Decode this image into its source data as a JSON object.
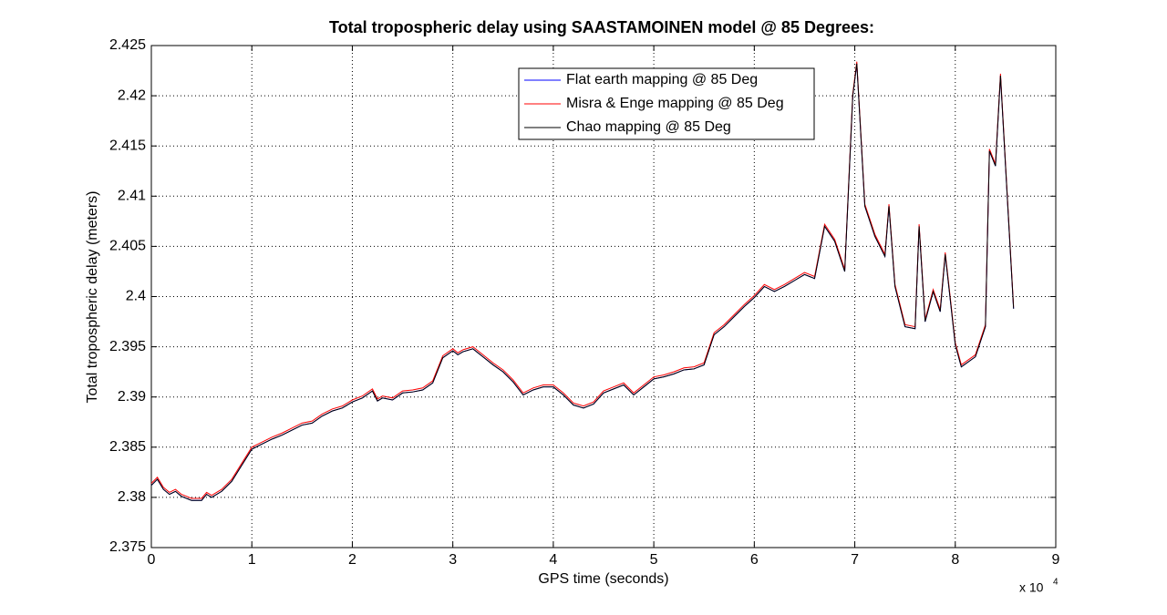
{
  "chart_data": {
    "type": "line",
    "title": "Total tropospheric delay using SAASTAMOINEN model @ 85 Degrees:",
    "x_label": "GPS time (seconds)",
    "y_label": "Total tropospheric delay (meters)",
    "x_multiplier": "x 10",
    "x_multiplier_exponent": "4",
    "xlim": [
      0,
      90000
    ],
    "xticks": [
      0,
      {
        "value": 10000,
        "label": "1"
      },
      {
        "value": 20000,
        "label": "2"
      },
      {
        "value": 30000,
        "label": "3"
      },
      {
        "value": 40000,
        "label": "4"
      },
      {
        "value": 50000,
        "label": "5"
      },
      {
        "value": 60000,
        "label": "6"
      },
      {
        "value": 70000,
        "label": "7"
      },
      {
        "value": 80000,
        "label": "8"
      },
      {
        "value": 90000,
        "label": "9"
      }
    ],
    "ylim": [
      2.375,
      2.425
    ],
    "yticks": [
      2.375,
      2.38,
      2.385,
      2.39,
      2.395,
      2.4,
      2.405,
      2.41,
      2.415,
      2.42,
      2.425
    ],
    "grid": true,
    "legend": "upper right",
    "x": [
      0,
      600,
      1200,
      1800,
      2400,
      3000,
      4000,
      5000,
      5500,
      6000,
      7000,
      8000,
      9000,
      10000,
      11000,
      12000,
      13000,
      14000,
      15000,
      16000,
      17000,
      18000,
      19000,
      20000,
      21000,
      22000,
      22500,
      23000,
      24000,
      25000,
      26000,
      27000,
      28000,
      29000,
      30000,
      30500,
      31000,
      32000,
      33000,
      34000,
      35000,
      36000,
      37000,
      38000,
      39000,
      40000,
      41000,
      42000,
      43000,
      44000,
      45000,
      46000,
      47000,
      48000,
      49000,
      50000,
      51000,
      52000,
      53000,
      54000,
      55000,
      56000,
      57000,
      58000,
      59000,
      60000,
      61000,
      62000,
      63000,
      64000,
      65000,
      66000,
      67000,
      68000,
      69000,
      69800,
      70200,
      71000,
      72000,
      73000,
      73400,
      74000,
      75000,
      76000,
      76400,
      77000,
      77800,
      78500,
      79000,
      80000,
      80600,
      82000,
      83000,
      83400,
      84000,
      84500,
      85000,
      85800
    ],
    "series": [
      {
        "name": "Flat earth mapping @ 85 Deg",
        "color": "#0000ff",
        "values": [
          2.3812,
          2.3818,
          2.3808,
          2.3803,
          2.3806,
          2.3801,
          2.3797,
          2.3797,
          2.3803,
          2.38,
          2.3806,
          2.3816,
          2.3832,
          2.3848,
          2.3853,
          2.3858,
          2.3862,
          2.3867,
          2.3872,
          2.3874,
          2.3881,
          2.3886,
          2.3889,
          2.3895,
          2.3899,
          2.3906,
          2.3896,
          2.3899,
          2.3897,
          2.3904,
          2.3905,
          2.3907,
          2.3914,
          2.3939,
          2.3946,
          2.3942,
          2.3945,
          2.3948,
          2.394,
          2.3932,
          2.3925,
          2.3915,
          2.3902,
          2.3907,
          2.391,
          2.391,
          2.3902,
          2.3892,
          2.3889,
          2.3893,
          2.3904,
          2.3908,
          2.3912,
          2.3902,
          2.391,
          2.3918,
          2.392,
          2.3923,
          2.3927,
          2.3928,
          2.3932,
          2.3962,
          2.397,
          2.398,
          2.399,
          2.3999,
          2.401,
          2.4005,
          2.401,
          2.4016,
          2.4022,
          2.4018,
          2.407,
          2.4055,
          2.4025,
          2.42,
          2.4232,
          2.409,
          2.406,
          2.404,
          2.409,
          2.401,
          2.397,
          2.3968,
          2.407,
          2.3975,
          2.4005,
          2.3985,
          2.4042,
          2.3952,
          2.393,
          2.394,
          2.397,
          2.4145,
          2.413,
          2.422,
          2.413,
          2.3988
        ]
      },
      {
        "name": "Misra & Enge mapping @ 85 Deg",
        "color": "#ff0000",
        "values": [
          2.3814,
          2.382,
          2.381,
          2.3805,
          2.3808,
          2.3803,
          2.3799,
          2.3799,
          2.3805,
          2.3802,
          2.3808,
          2.3818,
          2.3834,
          2.385,
          2.3855,
          2.386,
          2.3864,
          2.3869,
          2.3874,
          2.3876,
          2.3883,
          2.3888,
          2.3891,
          2.3897,
          2.3901,
          2.3908,
          2.3898,
          2.3901,
          2.3899,
          2.3906,
          2.3907,
          2.3909,
          2.3916,
          2.3941,
          2.3948,
          2.3944,
          2.3947,
          2.395,
          2.3942,
          2.3934,
          2.3927,
          2.3917,
          2.3904,
          2.3909,
          2.3912,
          2.3912,
          2.3904,
          2.3894,
          2.3891,
          2.3895,
          2.3906,
          2.391,
          2.3914,
          2.3904,
          2.3912,
          2.392,
          2.3922,
          2.3925,
          2.3929,
          2.393,
          2.3934,
          2.3964,
          2.3972,
          2.3982,
          2.3992,
          2.4001,
          2.4012,
          2.4007,
          2.4012,
          2.4018,
          2.4024,
          2.402,
          2.4072,
          2.4057,
          2.4027,
          2.4202,
          2.4234,
          2.4092,
          2.4062,
          2.4042,
          2.4092,
          2.4012,
          2.3972,
          2.397,
          2.4072,
          2.3977,
          2.4007,
          2.3987,
          2.4044,
          2.3954,
          2.3932,
          2.3942,
          2.3972,
          2.4147,
          2.4132,
          2.4222,
          2.4132,
          2.399
        ]
      },
      {
        "name": "Chao mapping @ 85 Deg",
        "color": "#000000",
        "values": [
          2.3812,
          2.3818,
          2.3808,
          2.3803,
          2.3806,
          2.3801,
          2.3797,
          2.3797,
          2.3803,
          2.38,
          2.3806,
          2.3816,
          2.3832,
          2.3848,
          2.3853,
          2.3858,
          2.3862,
          2.3867,
          2.3872,
          2.3874,
          2.3881,
          2.3886,
          2.3889,
          2.3895,
          2.3899,
          2.3906,
          2.3896,
          2.3899,
          2.3897,
          2.3904,
          2.3905,
          2.3907,
          2.3914,
          2.3939,
          2.3946,
          2.3942,
          2.3945,
          2.3948,
          2.394,
          2.3932,
          2.3925,
          2.3915,
          2.3902,
          2.3907,
          2.391,
          2.391,
          2.3902,
          2.3892,
          2.3889,
          2.3893,
          2.3904,
          2.3908,
          2.3912,
          2.3902,
          2.391,
          2.3918,
          2.392,
          2.3923,
          2.3927,
          2.3928,
          2.3932,
          2.3962,
          2.397,
          2.398,
          2.399,
          2.3999,
          2.401,
          2.4005,
          2.401,
          2.4016,
          2.4022,
          2.4018,
          2.407,
          2.4055,
          2.4025,
          2.42,
          2.4232,
          2.409,
          2.406,
          2.404,
          2.409,
          2.401,
          2.397,
          2.3968,
          2.407,
          2.3975,
          2.4005,
          2.3985,
          2.4042,
          2.3952,
          2.393,
          2.394,
          2.397,
          2.4145,
          2.413,
          2.422,
          2.413,
          2.3988
        ]
      }
    ]
  }
}
